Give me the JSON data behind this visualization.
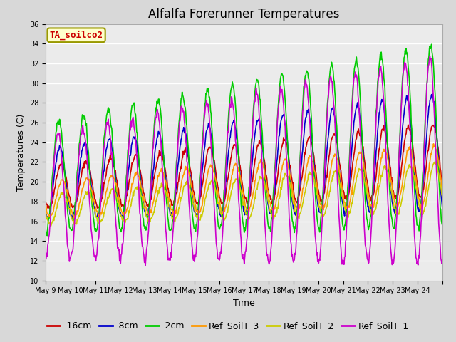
{
  "title": "Alfalfa Forerunner Temperatures",
  "xlabel": "Time",
  "ylabel": "Temperatures (C)",
  "annotation": "TA_soilco2",
  "annotation_color": "#cc0000",
  "annotation_bg": "#ffffcc",
  "annotation_border": "#999900",
  "ylim": [
    10,
    36
  ],
  "yticks": [
    10,
    12,
    14,
    16,
    18,
    20,
    22,
    24,
    26,
    28,
    30,
    32,
    34,
    36
  ],
  "x_tick_labels": [
    "May 9",
    "May 10",
    "May 11",
    "May 12",
    "May 13",
    "May 14",
    "May 15",
    "May 16",
    "May 17",
    "May 18",
    "May 19",
    "May 20",
    "May 21",
    "May 22",
    "May 23",
    "May 24"
  ],
  "series_labels": [
    "-16cm",
    "-8cm",
    "-2cm",
    "Ref_SoilT_3",
    "Ref_SoilT_2",
    "Ref_SoilT_1"
  ],
  "series_colors": [
    "#cc0000",
    "#0000cc",
    "#00cc00",
    "#ff9900",
    "#cccc00",
    "#cc00cc"
  ],
  "background_color": "#d8d8d8",
  "plot_bg_color": "#ebebeb",
  "grid_color": "#ffffff",
  "n_days": 16,
  "points_per_day": 48,
  "linewidth": 1.2,
  "title_fontsize": 12,
  "tick_fontsize": 7,
  "label_fontsize": 9,
  "legend_fontsize": 9
}
